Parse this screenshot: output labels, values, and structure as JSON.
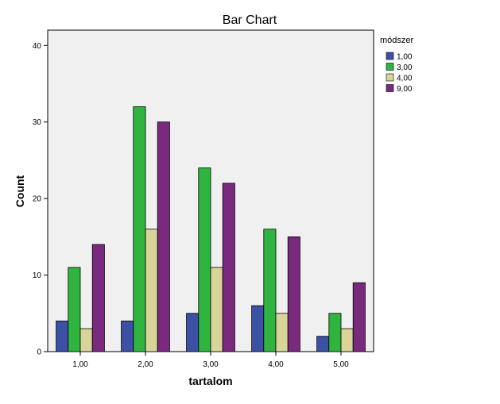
{
  "chart_data": {
    "type": "bar",
    "title": "Bar Chart",
    "xlabel": "tartalom",
    "ylabel": "Count",
    "categories": [
      "1,00",
      "2,00",
      "3,00",
      "4,00",
      "5,00"
    ],
    "ylim": [
      0,
      42
    ],
    "yticks": [
      0,
      10,
      20,
      30,
      40
    ],
    "grid": false,
    "legend_title": "módszer",
    "legend_position": "right",
    "plot_background": "#f0f0f0",
    "series": [
      {
        "name": "1,00",
        "color": "#3c50a6",
        "values": [
          4,
          4,
          5,
          6,
          2
        ]
      },
      {
        "name": "3,00",
        "color": "#2fb440",
        "values": [
          11,
          32,
          24,
          16,
          5
        ]
      },
      {
        "name": "4,00",
        "color": "#d8d49a",
        "values": [
          3,
          16,
          11,
          5,
          3
        ]
      },
      {
        "name": "9,00",
        "color": "#7a2a7e",
        "values": [
          14,
          30,
          22,
          15,
          9
        ]
      }
    ]
  }
}
